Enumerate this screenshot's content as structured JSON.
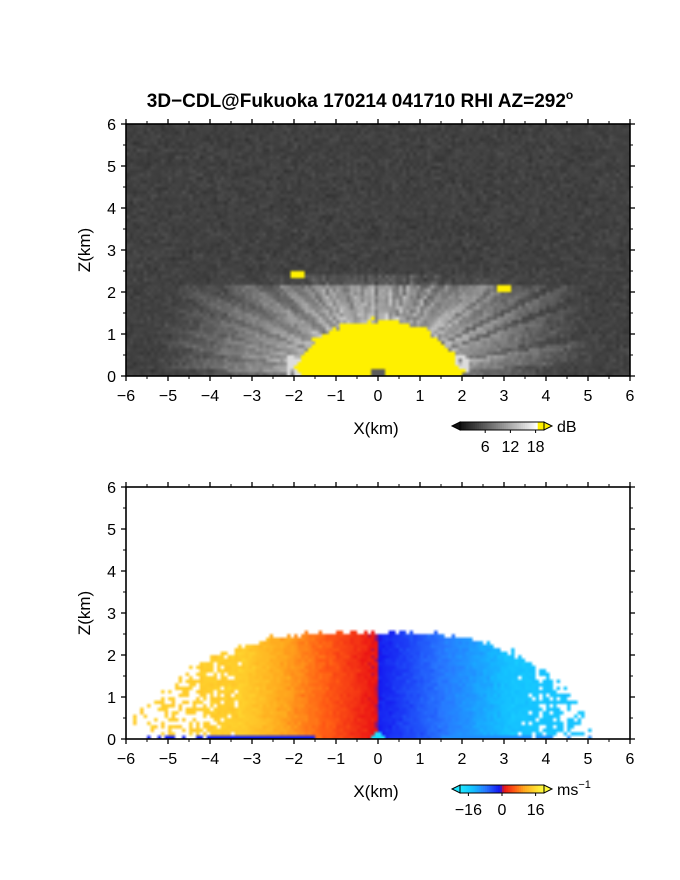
{
  "title": "3D−CDL@Fukuoka 170214 041710 RHI AZ=292",
  "title_suffix": "o",
  "chart_data": [
    {
      "type": "heatmap",
      "name": "reflectivity-rhi",
      "xlabel": "X(km)",
      "ylabel": "Z(km)",
      "xlim": [
        -6,
        6
      ],
      "ylim": [
        0,
        6
      ],
      "xticks": [
        "−6",
        "−5",
        "−4",
        "−3",
        "−2",
        "−1",
        "0",
        "1",
        "2",
        "3",
        "4",
        "5",
        "6"
      ],
      "yticks": [
        "0",
        "1",
        "2",
        "3",
        "4",
        "5",
        "6"
      ],
      "colorbar": {
        "unit": "dB",
        "ticks": [
          "6",
          "12",
          "18"
        ],
        "range": [
          0,
          20
        ],
        "palette": "grayscale-to-yellow"
      },
      "features": {
        "noise_floor_db": 4,
        "echo_top_km": 2.4,
        "strong_core_top_km": 1.3,
        "strong_core_x_km": [
          -2,
          2
        ],
        "hotspots": [
          {
            "x": -1.9,
            "z": 2.4
          },
          {
            "x": 3.0,
            "z": 2.1
          }
        ]
      },
      "grid": false
    },
    {
      "type": "heatmap",
      "name": "doppler-velocity-rhi",
      "xlabel": "X(km)",
      "ylabel": "Z(km)",
      "xlim": [
        -6,
        6
      ],
      "ylim": [
        0,
        6
      ],
      "xticks": [
        "−6",
        "−5",
        "−4",
        "−3",
        "−2",
        "−1",
        "0",
        "1",
        "2",
        "3",
        "4",
        "5",
        "6"
      ],
      "yticks": [
        "0",
        "1",
        "2",
        "3",
        "4",
        "5",
        "6"
      ],
      "colorbar": {
        "unit": "ms",
        "unit_exp": "−1",
        "ticks": [
          "−16",
          "0",
          "16"
        ],
        "range": [
          -20,
          20
        ],
        "palette": "cyan-blue-red-yellow"
      },
      "features": {
        "echo_top_km": 2.55,
        "left_extent_km": -5.9,
        "right_extent_km": 5.0,
        "velocity_left_ms": 15,
        "velocity_right_ms": -15
      },
      "grid": false
    }
  ]
}
